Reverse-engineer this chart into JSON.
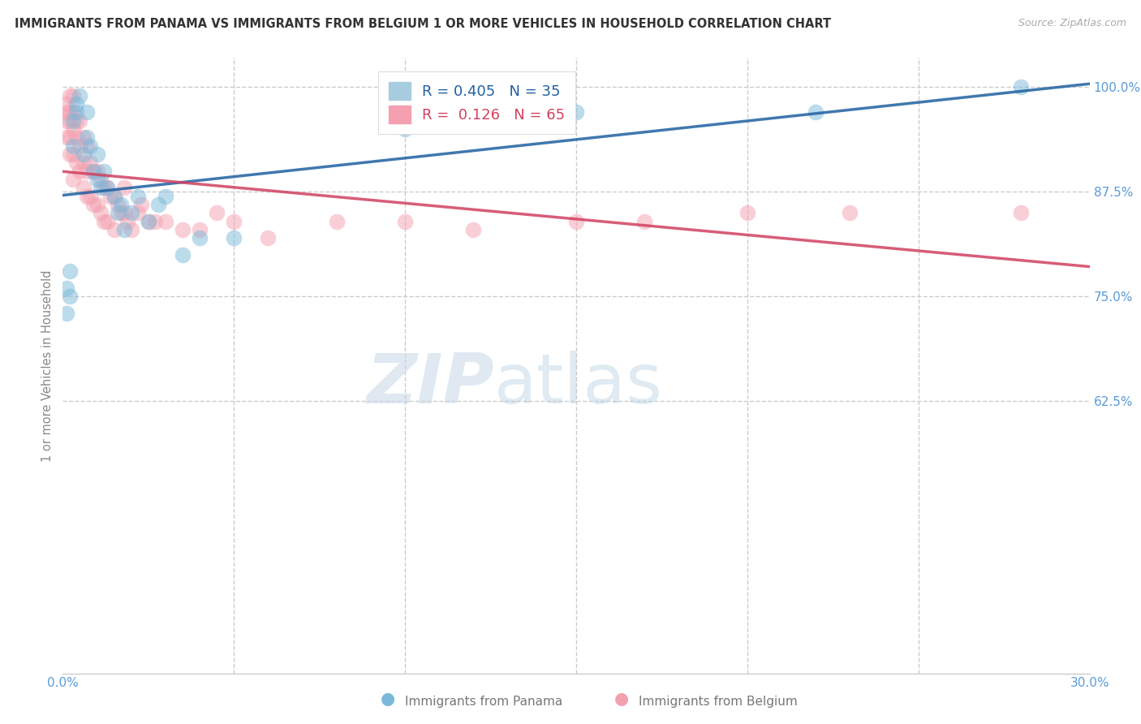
{
  "title": "IMMIGRANTS FROM PANAMA VS IMMIGRANTS FROM BELGIUM 1 OR MORE VEHICLES IN HOUSEHOLD CORRELATION CHART",
  "source": "Source: ZipAtlas.com",
  "ylabel": "1 or more Vehicles in Household",
  "xlim": [
    0.0,
    0.3
  ],
  "ylim": [
    0.3,
    1.035
  ],
  "panama_color": "#7ab8d9",
  "belgium_color": "#f4a0b0",
  "panama_line_color": "#2060a0",
  "belgium_line_color": "#d04060",
  "panama_R": 0.405,
  "panama_N": 35,
  "belgium_R": 0.126,
  "belgium_N": 65,
  "panama_x": [
    0.001,
    0.001,
    0.002,
    0.002,
    0.003,
    0.003,
    0.004,
    0.004,
    0.005,
    0.006,
    0.007,
    0.007,
    0.008,
    0.009,
    0.01,
    0.01,
    0.011,
    0.012,
    0.013,
    0.015,
    0.016,
    0.017,
    0.018,
    0.02,
    0.022,
    0.025,
    0.028,
    0.03,
    0.035,
    0.04,
    0.05,
    0.1,
    0.15,
    0.22,
    0.28
  ],
  "panama_y": [
    0.73,
    0.76,
    0.75,
    0.78,
    0.93,
    0.96,
    0.97,
    0.98,
    0.99,
    0.92,
    0.94,
    0.97,
    0.93,
    0.9,
    0.89,
    0.92,
    0.88,
    0.9,
    0.88,
    0.87,
    0.85,
    0.86,
    0.83,
    0.85,
    0.87,
    0.84,
    0.86,
    0.87,
    0.8,
    0.82,
    0.82,
    0.95,
    0.97,
    0.97,
    1.0
  ],
  "belgium_x": [
    0.001,
    0.001,
    0.001,
    0.001,
    0.002,
    0.002,
    0.002,
    0.002,
    0.002,
    0.003,
    0.003,
    0.003,
    0.003,
    0.003,
    0.004,
    0.004,
    0.004,
    0.005,
    0.005,
    0.005,
    0.006,
    0.006,
    0.006,
    0.007,
    0.007,
    0.007,
    0.008,
    0.008,
    0.009,
    0.009,
    0.01,
    0.01,
    0.011,
    0.011,
    0.012,
    0.012,
    0.013,
    0.013,
    0.014,
    0.015,
    0.015,
    0.016,
    0.017,
    0.018,
    0.018,
    0.019,
    0.02,
    0.022,
    0.023,
    0.025,
    0.027,
    0.03,
    0.035,
    0.04,
    0.045,
    0.05,
    0.06,
    0.08,
    0.1,
    0.12,
    0.15,
    0.17,
    0.2,
    0.23,
    0.28
  ],
  "belgium_y": [
    0.94,
    0.96,
    0.97,
    0.98,
    0.92,
    0.94,
    0.96,
    0.97,
    0.99,
    0.89,
    0.92,
    0.95,
    0.97,
    0.99,
    0.91,
    0.94,
    0.96,
    0.9,
    0.93,
    0.96,
    0.88,
    0.91,
    0.94,
    0.87,
    0.9,
    0.93,
    0.87,
    0.91,
    0.86,
    0.9,
    0.86,
    0.9,
    0.85,
    0.89,
    0.84,
    0.88,
    0.84,
    0.88,
    0.87,
    0.83,
    0.87,
    0.86,
    0.85,
    0.85,
    0.88,
    0.84,
    0.83,
    0.85,
    0.86,
    0.84,
    0.84,
    0.84,
    0.83,
    0.83,
    0.85,
    0.84,
    0.82,
    0.84,
    0.84,
    0.83,
    0.84,
    0.84,
    0.85,
    0.85,
    0.85
  ],
  "watermark_zip": "ZIP",
  "watermark_atlas": "atlas",
  "grid_color": "#cccccc",
  "title_color": "#333333",
  "axis_color": "#5b9bd5",
  "ytick_values": [
    0.625,
    0.75,
    0.875,
    1.0
  ],
  "ytick_labels": [
    "62.5%",
    "75.0%",
    "87.5%",
    "100.0%"
  ],
  "xtick_values": [
    0.0,
    0.05,
    0.1,
    0.15,
    0.2,
    0.25,
    0.3
  ],
  "xtick_show": [
    "0.0%",
    "",
    "",
    "",
    "",
    "",
    "30.0%"
  ]
}
